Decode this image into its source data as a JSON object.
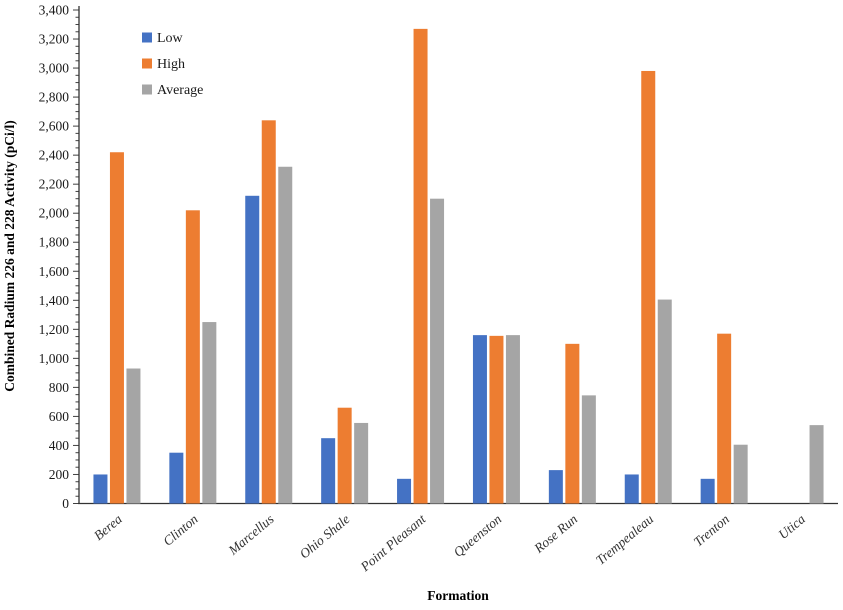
{
  "chart_data": {
    "type": "bar",
    "title": "",
    "xlabel": "Formation",
    "ylabel": "Combined Radium 226 and 228 Activity (pCi/l)",
    "categories": [
      "Berea",
      "Clinton",
      "Marcellus",
      "Ohio Shale",
      "Point Pleasant",
      "Queenston",
      "Rose Run",
      "Trempealeau",
      "Trenton",
      "Utica"
    ],
    "series": [
      {
        "name": "Low",
        "color": "#4472C4",
        "values": [
          200,
          350,
          2120,
          450,
          170,
          1160,
          230,
          200,
          170,
          0
        ]
      },
      {
        "name": "High",
        "color": "#ED7D31",
        "values": [
          2420,
          2020,
          2640,
          660,
          3270,
          1155,
          1100,
          2980,
          1170,
          0
        ]
      },
      {
        "name": "Average",
        "color": "#A5A5A5",
        "values": [
          930,
          1250,
          2320,
          555,
          2100,
          1160,
          745,
          1405,
          405,
          540
        ]
      }
    ],
    "ylim": [
      0,
      3400
    ],
    "y_major_step": 200,
    "y_minor_step": 50,
    "grid": false,
    "legend_position": "top-left",
    "legend_labels": [
      "Low",
      "High",
      "Average"
    ]
  },
  "colors": {
    "axis": "#333333",
    "tick_text": "#1a1a1a",
    "background": "#ffffff"
  }
}
